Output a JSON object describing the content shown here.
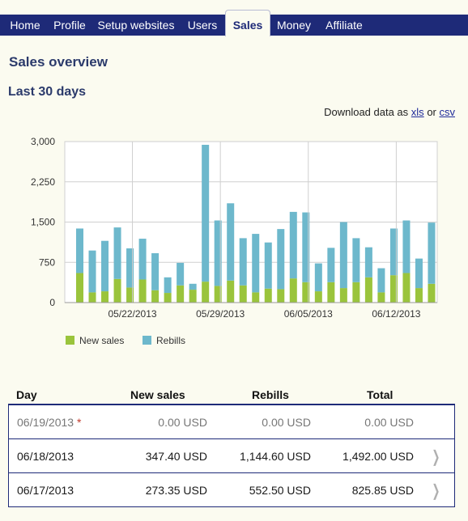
{
  "nav": {
    "tabs": [
      {
        "label": "Home",
        "active": false
      },
      {
        "label": "Profile",
        "active": false
      },
      {
        "label": "Setup websites",
        "active": false
      },
      {
        "label": "Users",
        "active": false
      },
      {
        "label": "Sales",
        "active": true
      },
      {
        "label": "Money",
        "active": false
      },
      {
        "label": "Affiliate",
        "active": false
      }
    ]
  },
  "page_title": "Sales overview",
  "section_title": "Last 30 days",
  "download": {
    "prefix": "Download data as",
    "xls": "xls",
    "or": "or",
    "csv": "csv"
  },
  "colors": {
    "nav": "#1e2a78",
    "new_sales": "#9ac43c",
    "rebills": "#6db8cc"
  },
  "chart_data": {
    "type": "bar",
    "stacked": true,
    "grid": true,
    "ylim": [
      0,
      3000
    ],
    "yticks": [
      "0",
      "750",
      "1,500",
      "2,250",
      "3,000"
    ],
    "xticks": [
      "05/22/2013",
      "05/29/2013",
      "06/05/2013",
      "06/12/2013"
    ],
    "legend": "bottom-left",
    "series": [
      {
        "name": "New sales",
        "values": [
          550,
          190,
          210,
          440,
          280,
          430,
          230,
          180,
          320,
          240,
          390,
          310,
          410,
          320,
          190,
          260,
          250,
          450,
          380,
          210,
          380,
          270,
          380,
          470,
          190,
          510,
          550,
          270,
          350
        ]
      },
      {
        "name": "Rebills",
        "values": [
          830,
          780,
          940,
          960,
          730,
          760,
          690,
          290,
          420,
          110,
          2550,
          1220,
          1440,
          880,
          1090,
          860,
          1120,
          1240,
          1300,
          520,
          640,
          1230,
          820,
          560,
          450,
          870,
          980,
          550,
          1140
        ]
      }
    ]
  },
  "table": {
    "headers": {
      "day": "Day",
      "new_sales": "New sales",
      "rebills": "Rebills",
      "total": "Total"
    },
    "rows": [
      {
        "day": "06/19/2013",
        "marker": "*",
        "new_sales": "0.00 USD",
        "rebills": "0.00 USD",
        "total": "0.00 USD",
        "muted": true
      },
      {
        "day": "06/18/2013",
        "marker": "",
        "new_sales": "347.40 USD",
        "rebills": "1,144.60 USD",
        "total": "1,492.00 USD",
        "muted": false
      },
      {
        "day": "06/17/2013",
        "marker": "",
        "new_sales": "273.35 USD",
        "rebills": "552.50 USD",
        "total": "825.85 USD",
        "muted": false
      }
    ]
  }
}
